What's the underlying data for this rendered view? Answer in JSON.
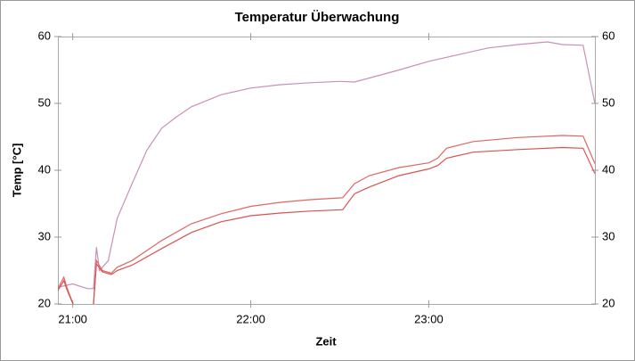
{
  "chart_data": {
    "type": "line",
    "title": "Temperatur Überwachung",
    "x_label": "Zeit",
    "y_label": "Temp [°C]",
    "xlim": [
      "20:55",
      "23:56"
    ],
    "xticks": [
      "21:00",
      "22:00",
      "23:00"
    ],
    "ylim": [
      20,
      60
    ],
    "yticks": [
      20,
      30,
      40,
      50,
      60
    ],
    "y2lim": [
      20,
      60
    ],
    "y2ticks": [
      20,
      30,
      40,
      50,
      60
    ],
    "grid": false,
    "series": [
      {
        "color": "#c890b8",
        "x": [
          "20:55",
          "21:00",
          "21:05",
          "21:07",
          "21:08",
          "21:09",
          "21:10",
          "21:12",
          "21:15",
          "21:20",
          "21:25",
          "21:30",
          "21:35",
          "21:40",
          "21:50",
          "22:00",
          "22:10",
          "22:20",
          "22:30",
          "22:35",
          "22:40",
          "22:50",
          "23:00",
          "23:10",
          "23:20",
          "23:30",
          "23:40",
          "23:45",
          "23:52",
          "23:56"
        ],
        "values": [
          22.5,
          23,
          22.3,
          22.3,
          28.5,
          25,
          25.5,
          26.5,
          32.8,
          38,
          43,
          46.3,
          48,
          49.5,
          51.3,
          52.3,
          52.8,
          53.1,
          53.3,
          53.2,
          53.8,
          55,
          56.3,
          57.3,
          58.3,
          58.8,
          59.2,
          58.8,
          58.7,
          50
        ]
      },
      {
        "color": "#e06666",
        "x": [
          "20:55",
          "20:57",
          "20:58",
          "21:01",
          "21:07",
          "21:08",
          "21:10",
          "21:13",
          "21:15",
          "21:20",
          "21:30",
          "21:40",
          "21:50",
          "22:00",
          "22:10",
          "22:20",
          "22:31",
          "22:35",
          "22:40",
          "22:50",
          "23:00",
          "23:03",
          "23:06",
          "23:15",
          "23:30",
          "23:45",
          "23:52",
          "23:56"
        ],
        "values": [
          22.3,
          24,
          22.5,
          19,
          20,
          26.5,
          25,
          24.6,
          25.5,
          26.5,
          29.5,
          32,
          33.5,
          34.6,
          35.2,
          35.6,
          35.9,
          38,
          39.2,
          40.4,
          41.1,
          41.8,
          43.3,
          44.3,
          44.9,
          45.2,
          45.1,
          41
        ]
      },
      {
        "color": "#d9534f",
        "x": [
          "20:55",
          "20:57",
          "20:58",
          "21:01",
          "21:07",
          "21:08",
          "21:10",
          "21:13",
          "21:15",
          "21:20",
          "21:30",
          "21:40",
          "21:50",
          "22:00",
          "22:10",
          "22:20",
          "22:31",
          "22:35",
          "22:40",
          "22:50",
          "23:00",
          "23:03",
          "23:06",
          "23:15",
          "23:30",
          "23:45",
          "23:52",
          "23:56"
        ],
        "values": [
          22,
          23.5,
          22.2,
          19,
          20,
          26,
          24.8,
          24.4,
          25,
          25.8,
          28.3,
          30.7,
          32.3,
          33.2,
          33.6,
          33.9,
          34.1,
          36.5,
          37.5,
          39.2,
          40.2,
          40.7,
          41.8,
          42.7,
          43.1,
          43.4,
          43.3,
          39.5
        ]
      }
    ]
  }
}
